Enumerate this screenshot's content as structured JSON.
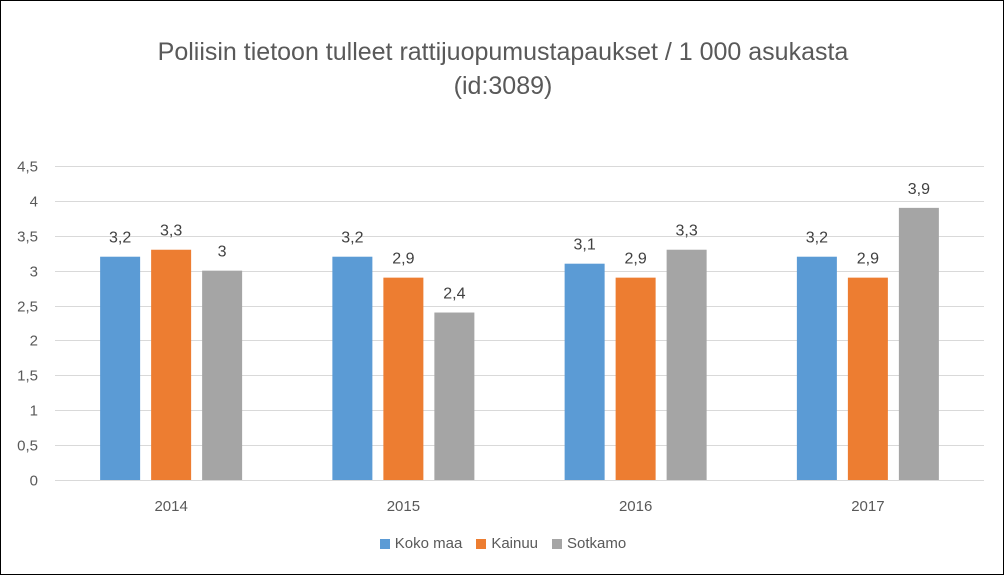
{
  "chart_data": {
    "type": "bar",
    "title_line1": "Poliisin tietoon tulleet rattijuopumustapaukset / 1 000 asukasta",
    "title_line2": "(id:3089)",
    "categories": [
      "2014",
      "2015",
      "2016",
      "2017"
    ],
    "series": [
      {
        "name": "Koko maa",
        "values": [
          3.2,
          3.2,
          3.1,
          3.2
        ],
        "labels": [
          "3,2",
          "3,2",
          "3,1",
          "3,2"
        ],
        "color": "#5B9BD5"
      },
      {
        "name": "Kainuu",
        "values": [
          3.3,
          2.9,
          2.9,
          2.9
        ],
        "labels": [
          "3,3",
          "2,9",
          "2,9",
          "2,9"
        ],
        "color": "#ED7D31"
      },
      {
        "name": "Sotkamo",
        "values": [
          3.0,
          2.4,
          3.3,
          3.9
        ],
        "labels": [
          "3",
          "2,4",
          "3,3",
          "3,9"
        ],
        "color": "#A5A5A5"
      }
    ],
    "ylim": [
      0,
      4.5
    ],
    "yticks": [
      {
        "value": 0,
        "label": "0"
      },
      {
        "value": 0.5,
        "label": "0,5"
      },
      {
        "value": 1,
        "label": "1"
      },
      {
        "value": 1.5,
        "label": "1,5"
      },
      {
        "value": 2,
        "label": "2"
      },
      {
        "value": 2.5,
        "label": "2,5"
      },
      {
        "value": 3,
        "label": "3"
      },
      {
        "value": 3.5,
        "label": "3,5"
      },
      {
        "value": 4,
        "label": "4"
      },
      {
        "value": 4.5,
        "label": "4,5"
      }
    ],
    "grid": true,
    "gridColor": "#D9D9D9",
    "legend_position": "bottom"
  }
}
